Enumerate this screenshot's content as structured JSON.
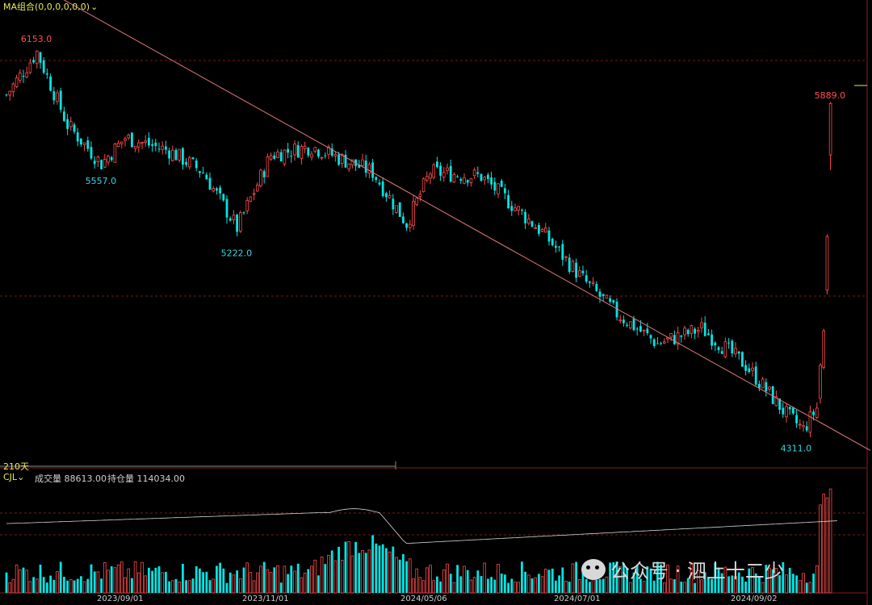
{
  "header": {
    "ma_label": "MA组合(0,0,0,0,0,0)",
    "ma_chevron": "chevron-down-icon"
  },
  "volume_panel": {
    "indicator": "CJL",
    "volume_text": "成交量 88613.00",
    "open_interest_text": "持仓量 114034.00"
  },
  "range_label": "210天",
  "watermark_text": "公众号 · 泗上十二少",
  "colors": {
    "up": "#ff4a4a",
    "down": "#00e5e5",
    "trendline": "#e07a7a",
    "grid": "#7a1a1a",
    "price_label_high": "#ff5050",
    "price_label_low": "#33d8e0",
    "oi_line": "#d8d8d8"
  },
  "chart_data": {
    "type": "candlestick",
    "x_ticks": [
      "2023/09/01",
      "2023/11/01",
      "2024/05/06",
      "2024/07/01",
      "2024/09/02"
    ],
    "x_tick_index": [
      25,
      68,
      118,
      165,
      215
    ],
    "price_ylim": [
      4200,
      6280
    ],
    "volume_ylim": [
      0,
      110
    ],
    "annotations": [
      {
        "text": "6153.0",
        "index": 9,
        "price": 6153,
        "kind": "high"
      },
      {
        "text": "5557.0",
        "index": 28,
        "price": 5557,
        "kind": "low"
      },
      {
        "text": "5222.0",
        "index": 68,
        "price": 5222,
        "kind": "low"
      },
      {
        "text": "5889.0",
        "index": 243,
        "price": 5889,
        "kind": "high"
      },
      {
        "text": "4311.0",
        "index": 233,
        "price": 4311,
        "kind": "low"
      }
    ],
    "last_bars": [
      {
        "index": 240,
        "open": 4505,
        "close": 4660,
        "high": 4670,
        "low": 4480
      },
      {
        "index": 241,
        "open": 4650,
        "close": 4820,
        "high": 4830,
        "low": 4640
      },
      {
        "index": 242,
        "open": 5010,
        "close": 5260,
        "high": 5270,
        "low": 4990
      },
      {
        "index": 243,
        "open": 5640,
        "close": 5880,
        "high": 5889,
        "low": 5570
      }
    ],
    "trendline": {
      "start": {
        "index": 0,
        "price": 6400
      },
      "end": {
        "index": 250,
        "price": 4300
      }
    },
    "n_bars": 246
  }
}
